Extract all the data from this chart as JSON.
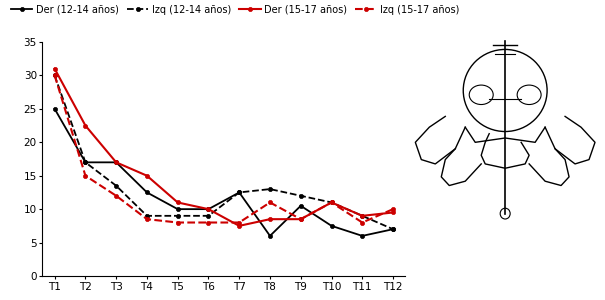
{
  "x_labels": [
    "T1",
    "T2",
    "T3",
    "T4",
    "T5",
    "T6",
    "T7",
    "T8",
    "T9",
    "T10",
    "T11",
    "T12"
  ],
  "series": {
    "der_12_14": [
      25,
      17,
      17,
      12.5,
      10,
      10,
      12.5,
      6,
      10.5,
      7.5,
      6,
      7
    ],
    "izq_12_14": [
      30,
      17,
      13.5,
      9,
      9,
      9,
      12.5,
      13,
      12,
      11,
      9,
      7
    ],
    "der_15_17": [
      31,
      22.5,
      17,
      15,
      11,
      10,
      7.5,
      8.5,
      8.5,
      11,
      9,
      9.5
    ],
    "izq_15_17": [
      30,
      15,
      12,
      8.5,
      8,
      8,
      8,
      11,
      8.5,
      11,
      8,
      10
    ]
  },
  "legend": [
    "Der (12-14 años)",
    "Izq (12-14 años)",
    "Der (15-17 años)",
    "Izq (15-17 años)"
  ],
  "ylim": [
    0,
    35
  ],
  "yticks": [
    0,
    5,
    10,
    15,
    20,
    25,
    30,
    35
  ],
  "line_colors": [
    "#000000",
    "#000000",
    "#cc0000",
    "#cc0000"
  ],
  "line_styles": [
    "-",
    "--",
    "-",
    "--"
  ],
  "marker_styles": [
    "o",
    "o",
    "o",
    "o"
  ],
  "marker_sizes": [
    3,
    3,
    3,
    3
  ],
  "linewidths": [
    1.3,
    1.3,
    1.5,
    1.5
  ],
  "background_color": "#ffffff"
}
